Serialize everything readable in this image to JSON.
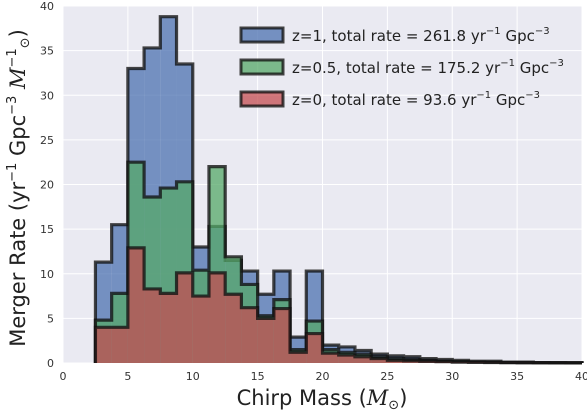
{
  "chart_data": {
    "type": "histogram",
    "xlim": [
      0,
      40
    ],
    "ylim": [
      0,
      40
    ],
    "x_ticks": [
      "0",
      "5",
      "10",
      "15",
      "20",
      "25",
      "30",
      "35",
      "40"
    ],
    "y_ticks": [
      "0",
      "5",
      "10",
      "15",
      "20",
      "25",
      "30",
      "35",
      "40"
    ],
    "xlabel": {
      "main": "Chirp Mass (",
      "symbol": "M",
      "sub": "⊙",
      "tail": ")"
    },
    "ylabel": {
      "p1": "Merger Rate (yr",
      "e1": "−1",
      "p2": " Gpc",
      "e2": "−3",
      "p3": " M",
      "e3": "−1",
      "sub": "⊙",
      "p4": ")"
    },
    "grid": true,
    "legend_placement": "top-right",
    "bin_edges": [
      2.5,
      3.75,
      5.0,
      6.25,
      7.5,
      8.75,
      10.0,
      11.25,
      12.5,
      13.75,
      15.0,
      16.25,
      17.5,
      18.75,
      20.0,
      21.25,
      22.5,
      23.75,
      25.0,
      26.25,
      27.5,
      28.75,
      30.0,
      31.25,
      32.5,
      33.75,
      35.0,
      36.25,
      37.5,
      38.75,
      40.0
    ],
    "series": [
      {
        "name": "z=1, total rate = 261.8 yr",
        "name_sup1": "−1",
        "name_mid": " Gpc",
        "name_sup2": "−3",
        "color": "#4c72b0",
        "values": [
          11.3,
          15.5,
          33.0,
          35.3,
          38.8,
          33.5,
          13.0,
          15.3,
          11.5,
          10.3,
          7.7,
          10.3,
          2.9,
          10.3,
          2.0,
          1.8,
          1.4,
          1.0,
          0.8,
          0.7,
          0.5,
          0.4,
          0.3,
          0.2,
          0.2,
          0.1,
          0.1,
          0.05,
          0.05,
          0.03
        ]
      },
      {
        "name": "z=0.5, total rate = 175.2 yr",
        "name_sup1": "−1",
        "name_mid": " Gpc",
        "name_sup2": "−3",
        "color": "#55a868",
        "values": [
          4.8,
          7.8,
          22.5,
          18.6,
          19.6,
          20.3,
          10.4,
          22.0,
          11.9,
          8.8,
          5.3,
          7.1,
          1.5,
          4.7,
          1.5,
          1.2,
          1.0,
          0.7,
          0.5,
          0.4,
          0.3,
          0.2,
          0.15,
          0.1,
          0.08,
          0.05,
          0.04,
          0.03,
          0.02,
          0.01
        ]
      },
      {
        "name": "z=0, total rate = 93.6 yr",
        "name_sup1": "−1",
        "name_mid": " Gpc",
        "name_sup2": "−3",
        "color": "#c44e52",
        "values": [
          4.0,
          4.0,
          12.9,
          8.3,
          7.8,
          10.1,
          7.5,
          10.1,
          7.7,
          6.2,
          5.0,
          6.1,
          1.2,
          3.3,
          1.1,
          0.9,
          0.7,
          0.5,
          0.3,
          0.25,
          0.2,
          0.15,
          0.1,
          0.08,
          0.05,
          0.04,
          0.03,
          0.02,
          0.01,
          0.01
        ]
      }
    ]
  }
}
